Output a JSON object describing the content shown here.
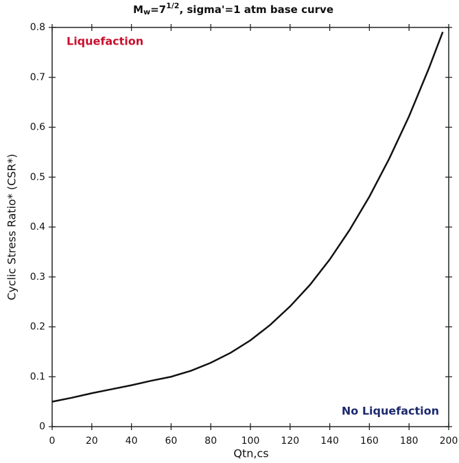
{
  "chart_data": {
    "type": "line",
    "title": [
      "M",
      "w",
      "=7",
      "1/2",
      ", sigma'=1 atm base curve"
    ],
    "x_label": "Qtn,cs",
    "y_label": "Cyclic Stress Ratio* (CSR*)",
    "annotations": [
      {
        "text": "Liquefaction",
        "color": "#c8102e"
      },
      {
        "text": "No Liquefaction",
        "color": "#1c2a6e"
      }
    ],
    "x": [
      0,
      10,
      20,
      30,
      40,
      50,
      60,
      70,
      80,
      90,
      100,
      110,
      120,
      130,
      140,
      150,
      160,
      170,
      180,
      190,
      197
    ],
    "series": [
      {
        "color": "#111111",
        "values": [
          0.05,
          0.058,
          0.067,
          0.075,
          0.083,
          0.092,
          0.1,
          0.112,
          0.128,
          0.148,
          0.173,
          0.204,
          0.241,
          0.284,
          0.335,
          0.394,
          0.461,
          0.537,
          0.622,
          0.718,
          0.791
        ]
      }
    ],
    "xlim": [
      0,
      200
    ],
    "xticks": [
      0,
      20,
      40,
      60,
      80,
      100,
      120,
      140,
      160,
      180,
      200
    ],
    "ylim": [
      0,
      0.8
    ],
    "yticks": [
      0,
      0.1,
      0.2,
      0.3,
      0.4,
      0.5,
      0.6,
      0.7,
      0.8
    ]
  }
}
